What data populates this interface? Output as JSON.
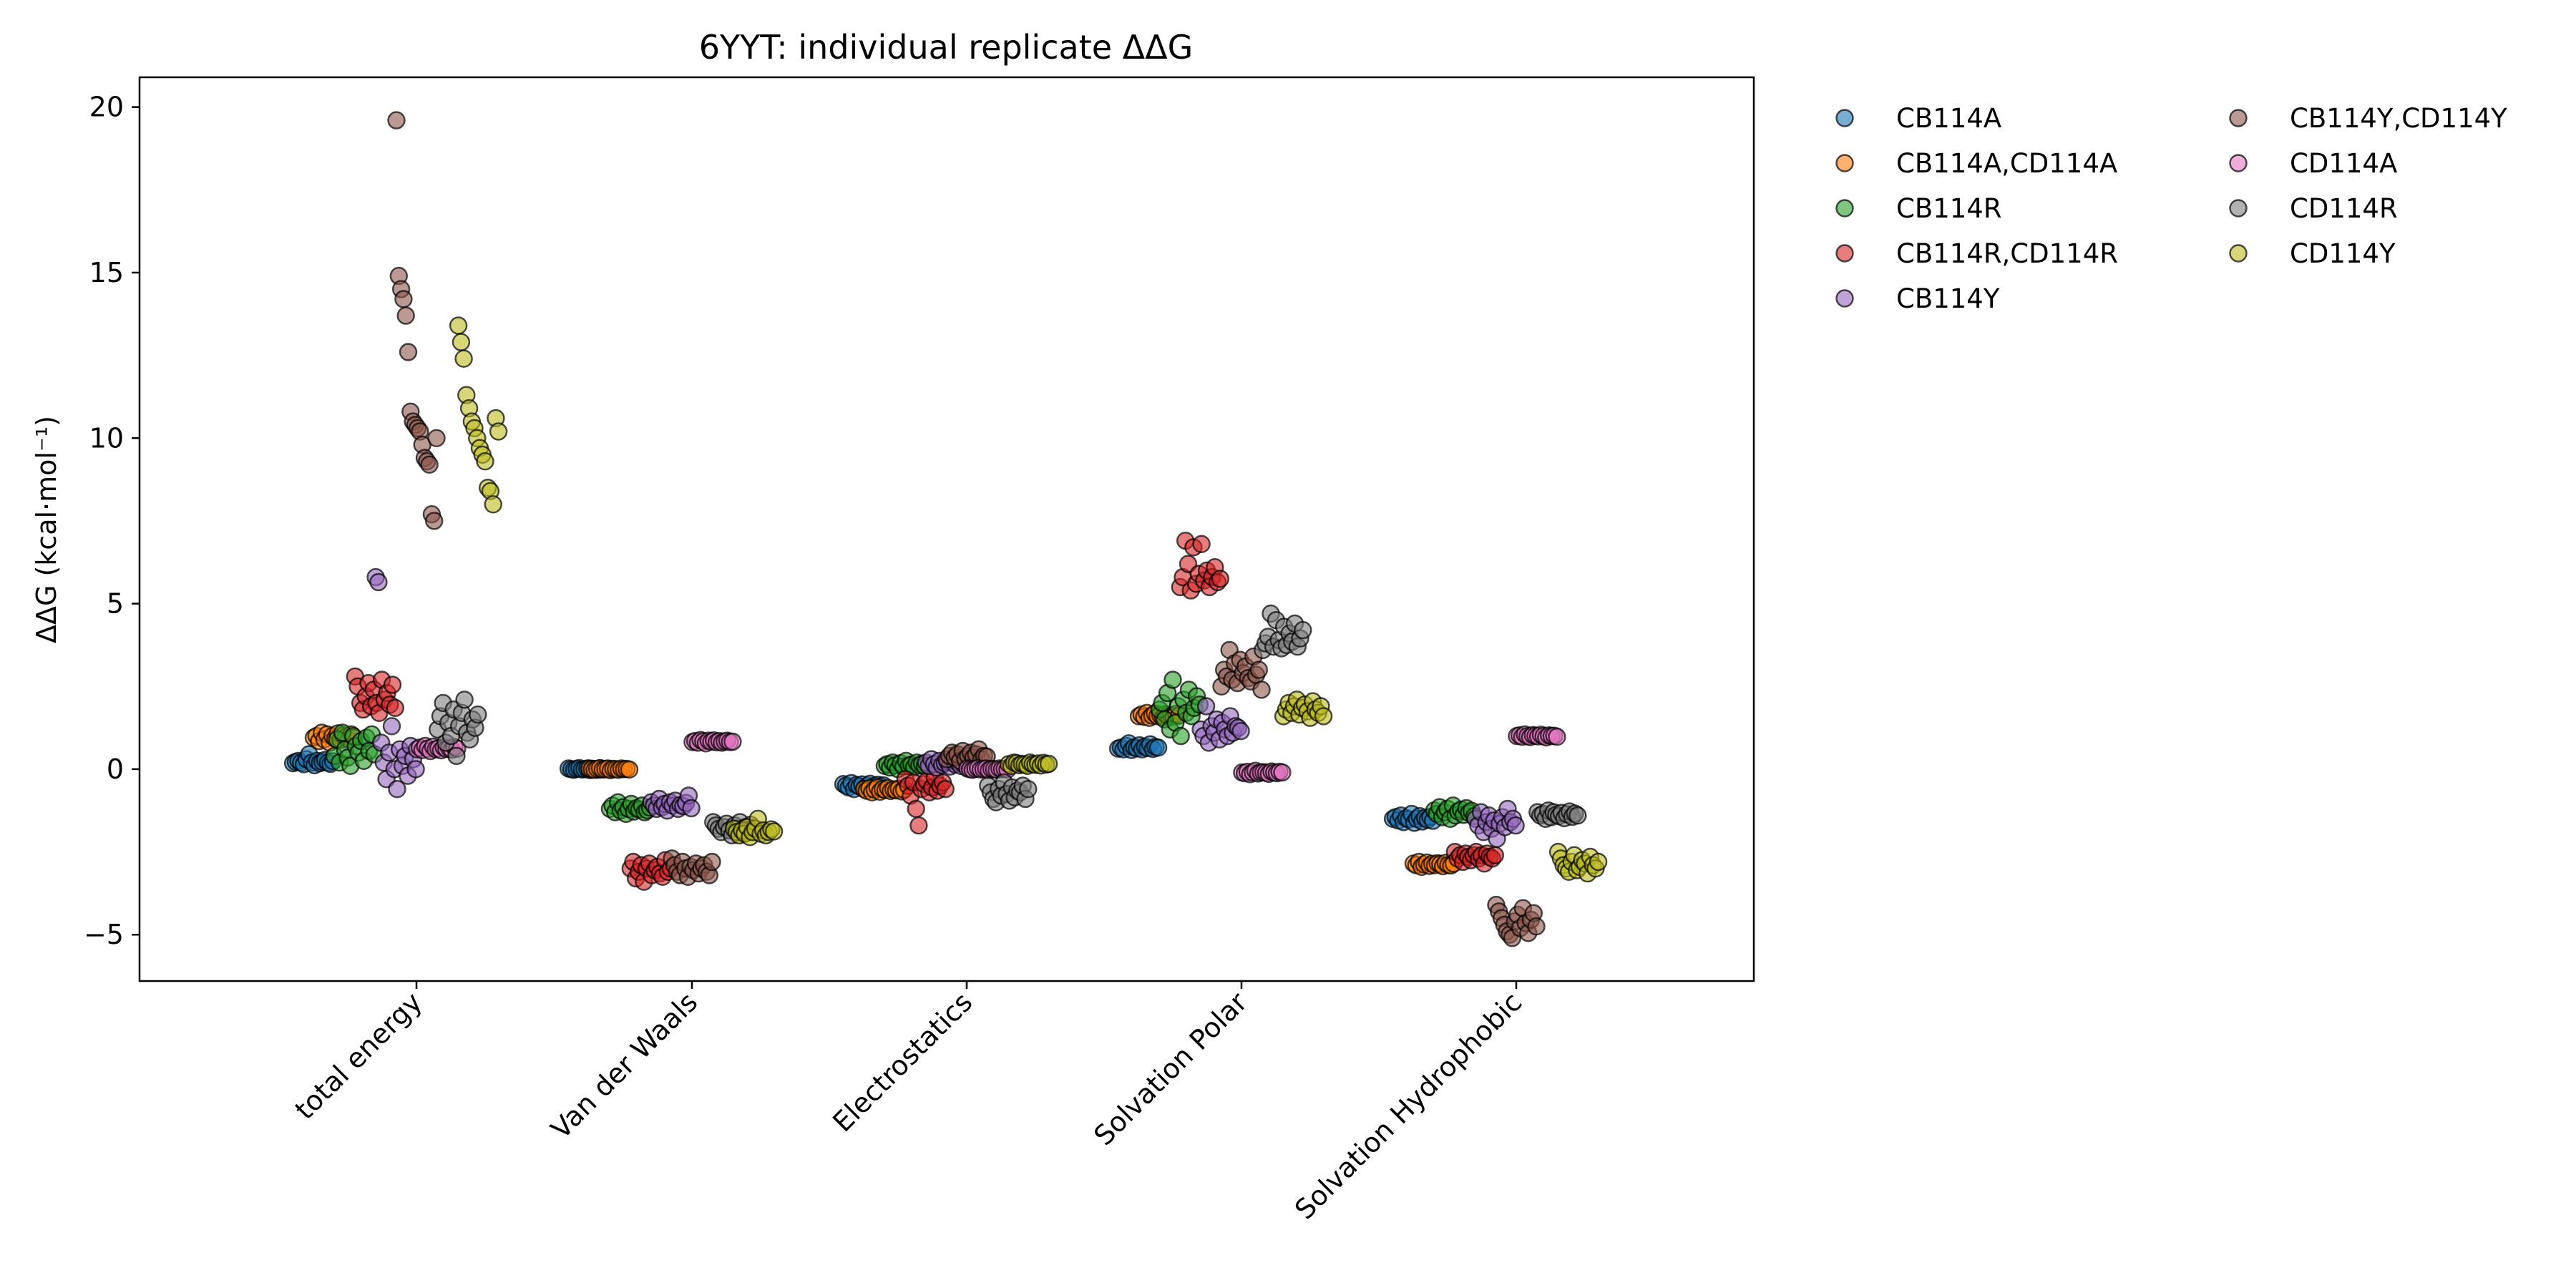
{
  "chart_data": {
    "type": "scatter",
    "title": "6YYT: individual replicate ΔΔG",
    "xlabel": "",
    "ylabel": "ΔΔG (kcal·mol⁻¹)",
    "ylim": [
      -6.4,
      20.9
    ],
    "yticks": [
      -5,
      0,
      5,
      10,
      15,
      20
    ],
    "categories": [
      "total energy",
      "Van der Waals",
      "Electrostatics",
      "Solvation Polar",
      "Solvation Hydrophobic"
    ],
    "legend_position": "outside-top-right",
    "legend_columns": 2,
    "grid": false,
    "series": [
      {
        "name": "CB114A",
        "color": "#1f77b4",
        "offset": -0.375,
        "values": [
          [
            0.18,
            0.22,
            0.25,
            0.2,
            0.15,
            0.3,
            0.45,
            0.2,
            0.12,
            0.25,
            0.18,
            0.22,
            0.28,
            0.2,
            0.16,
            0.24
          ],
          [
            0.02,
            0.0,
            -0.02,
            0.01,
            0.03,
            -0.01,
            0.0,
            0.02,
            -0.03,
            0.01,
            0.0,
            -0.02,
            0.02,
            0.0,
            0.01,
            -0.01
          ],
          [
            -0.45,
            -0.5,
            -0.55,
            -0.42,
            -0.6,
            -0.48,
            -0.52,
            -0.46,
            -0.58,
            -0.5,
            -0.44,
            -0.56,
            -0.5,
            -0.47,
            -0.53,
            -0.49
          ],
          [
            0.62,
            0.65,
            0.6,
            0.7,
            0.78,
            0.58,
            0.66,
            0.63,
            0.72,
            0.6,
            0.68,
            0.64,
            0.75,
            0.61,
            0.67,
            0.65
          ],
          [
            -1.5,
            -1.45,
            -1.55,
            -1.4,
            -1.6,
            -1.48,
            -1.52,
            -1.35,
            -1.62,
            -1.5,
            -1.42,
            -1.58,
            -1.47,
            -1.53,
            -1.44,
            -1.56
          ]
        ]
      },
      {
        "name": "CB114A,CD114A",
        "color": "#ff7f0e",
        "offset": -0.3,
        "values": [
          [
            0.95,
            1.0,
            0.85,
            1.1,
            0.9,
            1.05,
            0.8,
            1.0,
            0.92,
            1.08,
            0.88,
            1.02,
            0.97,
            0.9,
            1.05,
            0.95
          ],
          [
            0.02,
            0.0,
            -0.02,
            0.01,
            0.03,
            -0.01,
            0.0,
            0.02,
            -0.03,
            0.01,
            0.0,
            -0.02,
            0.02,
            0.0,
            0.01,
            -0.01
          ],
          [
            -0.6,
            -0.65,
            -0.58,
            -0.7,
            -0.62,
            -0.55,
            -0.68,
            -0.6,
            -0.63,
            -0.57,
            -0.66,
            -0.61,
            -0.64,
            -0.59,
            -0.67,
            -0.62
          ],
          [
            1.6,
            1.65,
            1.58,
            1.7,
            1.55,
            1.62,
            1.68,
            1.6,
            1.64,
            1.57,
            1.66,
            1.61,
            1.63,
            1.59,
            1.67,
            1.62
          ],
          [
            -2.85,
            -2.9,
            -2.8,
            -2.95,
            -2.88,
            -2.82,
            -2.92,
            -2.86,
            -2.9,
            -2.84,
            -2.87,
            -2.93,
            -2.83,
            -2.89,
            -2.91,
            -2.85
          ]
        ]
      },
      {
        "name": "CB114R",
        "color": "#2ca02c",
        "offset": -0.225,
        "values": [
          [
            0.4,
            0.9,
            0.2,
            1.1,
            0.6,
            0.35,
            0.1,
            1.0,
            0.7,
            0.5,
            0.85,
            0.25,
            0.95,
            0.55,
            1.05,
            0.45
          ],
          [
            -1.2,
            -1.1,
            -1.3,
            -1.0,
            -1.25,
            -1.15,
            -1.35,
            -1.2,
            -1.05,
            -1.28,
            -1.18,
            -1.22,
            -1.1,
            -1.3,
            -1.24,
            -1.16
          ],
          [
            0.1,
            0.15,
            0.05,
            0.2,
            0.12,
            0.0,
            0.18,
            0.08,
            0.25,
            0.1,
            0.14,
            0.06,
            0.2,
            0.12,
            0.16,
            0.09
          ],
          [
            1.8,
            2.0,
            1.5,
            2.3,
            1.2,
            2.7,
            1.4,
            1.9,
            1.0,
            2.1,
            1.7,
            2.4,
            1.6,
            1.85,
            2.2,
            1.95
          ],
          [
            -1.25,
            -1.35,
            -1.15,
            -1.45,
            -1.3,
            -1.2,
            -1.5,
            -1.1,
            -1.4,
            -1.28,
            -1.22,
            -1.38,
            -1.18,
            -1.32,
            -1.26,
            -1.42
          ]
        ]
      },
      {
        "name": "CB114R,CD114R",
        "color": "#d62728",
        "offset": -0.15,
        "values": [
          [
            2.8,
            2.5,
            2.0,
            1.8,
            2.2,
            2.6,
            1.9,
            2.4,
            2.0,
            1.7,
            2.7,
            2.1,
            2.3,
            1.95,
            2.55,
            1.85
          ],
          [
            -3.0,
            -2.8,
            -3.3,
            -3.1,
            -2.9,
            -3.4,
            -3.0,
            -2.85,
            -3.2,
            -3.05,
            -2.95,
            -3.15,
            -3.25,
            -2.75,
            -3.1,
            -3.0
          ],
          [
            -0.3,
            -0.5,
            -0.8,
            -0.4,
            -1.2,
            -1.7,
            -0.6,
            -0.45,
            -0.35,
            -0.7,
            -0.55,
            -0.25,
            -0.65,
            -0.5,
            -0.4,
            -0.6
          ],
          [
            5.5,
            5.8,
            6.9,
            6.2,
            5.4,
            6.7,
            5.6,
            5.9,
            6.8,
            5.7,
            6.0,
            5.5,
            5.8,
            6.1,
            5.65,
            5.75
          ],
          [
            -2.5,
            -2.7,
            -2.6,
            -2.8,
            -2.55,
            -2.65,
            -2.75,
            -2.6,
            -2.5,
            -2.7,
            -2.6,
            -2.85,
            -2.55,
            -2.65,
            -2.7,
            -2.6
          ]
        ]
      },
      {
        "name": "CB114Y",
        "color": "#9467bd",
        "offset": -0.075,
        "values": [
          [
            5.8,
            5.65,
            0.8,
            0.2,
            -0.3,
            0.5,
            1.3,
            0.0,
            -0.6,
            0.6,
            0.1,
            0.4,
            -0.2,
            0.7,
            0.3,
            0.0
          ],
          [
            -1.0,
            -1.1,
            -1.2,
            -0.9,
            -1.15,
            -1.05,
            -1.25,
            -1.0,
            -1.1,
            -0.95,
            -1.2,
            -1.08,
            -1.12,
            -1.02,
            -0.8,
            -1.18
          ],
          [
            0.2,
            0.1,
            0.3,
            0.15,
            0.05,
            0.25,
            0.12,
            0.18,
            0.22,
            0.08,
            0.28,
            0.14,
            0.2,
            0.1,
            0.16,
            0.24
          ],
          [
            1.2,
            1.0,
            1.9,
            0.8,
            1.3,
            1.1,
            1.5,
            0.9,
            1.4,
            1.2,
            1.0,
            1.6,
            1.1,
            1.3,
            1.25,
            1.15
          ],
          [
            -1.5,
            -1.7,
            -1.3,
            -1.9,
            -1.6,
            -1.4,
            -1.8,
            -1.55,
            -2.1,
            -1.65,
            -1.45,
            -1.75,
            -1.2,
            -1.6,
            -1.5,
            -1.7
          ]
        ]
      },
      {
        "name": "CB114Y,CD114Y",
        "color": "#8c564b",
        "offset": 0.0,
        "values": [
          [
            19.6,
            14.9,
            14.5,
            14.2,
            13.7,
            12.6,
            10.8,
            10.5,
            10.4,
            10.3,
            10.2,
            9.8,
            9.4,
            9.3,
            9.2,
            7.7,
            7.5,
            10.0
          ],
          [
            -2.7,
            -2.9,
            -3.1,
            -3.2,
            -2.8,
            -3.0,
            -3.25,
            -2.95,
            -3.05,
            -2.85,
            -3.15,
            -3.0,
            -2.9,
            -3.1,
            -3.2,
            -2.8
          ],
          [
            0.3,
            0.4,
            0.5,
            0.35,
            0.45,
            0.25,
            0.55,
            0.3,
            0.4,
            0.5,
            0.35,
            0.45,
            0.6,
            0.3,
            0.4,
            0.38
          ],
          [
            2.5,
            3.0,
            2.8,
            3.6,
            2.7,
            3.2,
            2.6,
            3.3,
            2.9,
            3.1,
            2.75,
            2.65,
            3.4,
            2.85,
            3.0,
            2.4
          ],
          [
            -4.1,
            -4.3,
            -4.5,
            -4.7,
            -4.9,
            -5.0,
            -5.1,
            -4.6,
            -4.4,
            -4.8,
            -4.2,
            -4.65,
            -4.95,
            -4.55,
            -4.35,
            -4.75
          ]
        ]
      },
      {
        "name": "CD114A",
        "color": "#e377c2",
        "offset": 0.075,
        "values": [
          [
            0.6,
            0.65,
            0.58,
            0.7,
            0.62,
            0.55,
            0.68,
            0.6,
            0.63,
            0.57,
            0.66,
            0.61,
            0.64,
            0.59,
            0.67,
            0.62
          ],
          [
            0.82,
            0.85,
            0.8,
            0.88,
            0.84,
            0.78,
            0.86,
            0.83,
            0.87,
            0.81,
            0.85,
            0.8,
            0.84,
            0.86,
            0.82,
            0.83
          ],
          [
            0.02,
            0.0,
            -0.02,
            0.01,
            0.03,
            -0.01,
            0.0,
            0.02,
            -0.03,
            0.01,
            0.0,
            -0.02,
            0.02,
            0.0,
            0.01,
            -0.01
          ],
          [
            -0.1,
            -0.12,
            -0.08,
            -0.15,
            -0.1,
            -0.05,
            -0.13,
            -0.1,
            -0.09,
            -0.11,
            -0.14,
            -0.07,
            -0.1,
            -0.12,
            -0.08,
            -0.1
          ],
          [
            1.0,
            1.02,
            0.98,
            1.05,
            1.0,
            0.97,
            1.03,
            1.01,
            0.99,
            1.04,
            1.0,
            0.96,
            1.02,
            1.0,
            1.01,
            0.98
          ]
        ]
      },
      {
        "name": "CD114R",
        "color": "#7f7f7f",
        "offset": 0.15,
        "values": [
          [
            1.2,
            1.6,
            2.0,
            0.8,
            1.4,
            1.0,
            1.8,
            0.4,
            1.3,
            1.7,
            2.1,
            1.1,
            0.9,
            1.5,
            1.25,
            1.65
          ],
          [
            -1.6,
            -1.7,
            -1.8,
            -1.9,
            -1.75,
            -1.65,
            -1.85,
            -2.0,
            -1.7,
            -1.8,
            -1.6,
            -1.9,
            -1.75,
            -1.82,
            -1.68,
            -1.78
          ],
          [
            -0.5,
            -0.7,
            -0.9,
            -1.0,
            -0.6,
            -0.8,
            -0.4,
            -0.75,
            -0.95,
            -0.55,
            -0.85,
            -0.65,
            -0.7,
            -0.5,
            -0.9,
            -0.6
          ],
          [
            3.6,
            3.8,
            4.0,
            4.7,
            3.7,
            4.5,
            3.9,
            3.65,
            4.3,
            3.75,
            4.1,
            3.85,
            4.4,
            3.7,
            3.95,
            4.2
          ],
          [
            -1.3,
            -1.4,
            -1.35,
            -1.5,
            -1.25,
            -1.45,
            -1.3,
            -1.38,
            -1.42,
            -1.32,
            -1.48,
            -1.36,
            -1.28,
            -1.44,
            -1.34,
            -1.4
          ]
        ]
      },
      {
        "name": "CD114Y",
        "color": "#bcbd22",
        "offset": 0.225,
        "values": [
          [
            13.4,
            12.9,
            12.4,
            11.3,
            10.9,
            10.5,
            10.3,
            10.0,
            9.7,
            9.5,
            9.3,
            8.5,
            8.4,
            8.0,
            10.6,
            10.2
          ],
          [
            -1.8,
            -1.9,
            -2.0,
            -1.85,
            -1.95,
            -1.75,
            -2.05,
            -1.9,
            -1.8,
            -1.5,
            -1.95,
            -1.85,
            -2.0,
            -1.9,
            -1.82,
            -1.88
          ],
          [
            0.15,
            0.1,
            0.2,
            0.18,
            0.12,
            0.16,
            0.14,
            0.1,
            0.2,
            0.15,
            0.13,
            0.17,
            0.11,
            0.19,
            0.14,
            0.16
          ],
          [
            1.6,
            1.8,
            2.0,
            1.7,
            1.9,
            2.1,
            1.65,
            1.85,
            1.95,
            1.75,
            1.55,
            2.05,
            1.8,
            1.7,
            1.9,
            1.6
          ],
          [
            -2.5,
            -2.7,
            -2.9,
            -3.0,
            -3.1,
            -2.8,
            -2.6,
            -3.05,
            -2.95,
            -2.75,
            -2.85,
            -3.15,
            -2.65,
            -2.9,
            -3.0,
            -2.8
          ]
        ]
      }
    ]
  }
}
